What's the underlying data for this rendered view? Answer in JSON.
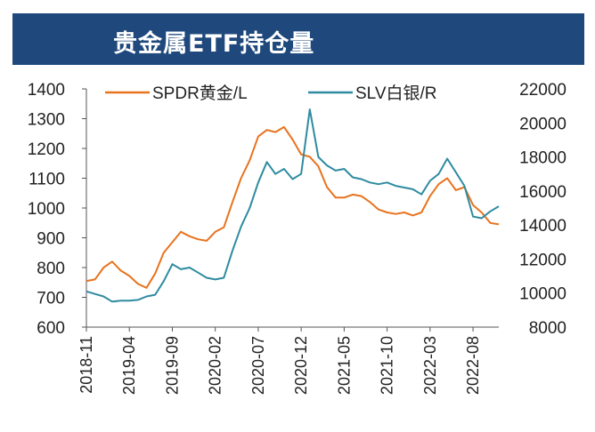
{
  "title": "贵金属ETF持仓量",
  "chart_data": {
    "type": "line",
    "title": "贵金属ETF持仓量",
    "x": [
      "2018-11",
      "2018-12",
      "2019-01",
      "2019-02",
      "2019-03",
      "2019-04",
      "2019-05",
      "2019-06",
      "2019-07",
      "2019-08",
      "2019-09",
      "2019-10",
      "2019-11",
      "2019-12",
      "2020-01",
      "2020-02",
      "2020-03",
      "2020-04",
      "2020-05",
      "2020-06",
      "2020-07",
      "2020-08",
      "2020-09",
      "2020-10",
      "2020-11",
      "2020-12",
      "2021-01",
      "2021-02",
      "2021-03",
      "2021-04",
      "2021-05",
      "2021-06",
      "2021-07",
      "2021-08",
      "2021-09",
      "2021-10",
      "2021-11",
      "2021-12",
      "2022-01",
      "2022-02",
      "2022-03",
      "2022-04",
      "2022-05",
      "2022-06",
      "2022-07",
      "2022-08",
      "2022-09",
      "2022-10",
      "2022-11"
    ],
    "x_tick_labels": [
      "2018-11",
      "2019-04",
      "2019-09",
      "2020-02",
      "2020-07",
      "2020-12",
      "2021-05",
      "2021-10",
      "2022-03",
      "2022-08"
    ],
    "series": [
      {
        "name": "SPDR黄金/L",
        "axis": "left",
        "color": "#e8731e",
        "values": [
          755,
          760,
          800,
          820,
          790,
          772,
          745,
          732,
          780,
          850,
          885,
          920,
          905,
          895,
          890,
          920,
          935,
          1020,
          1100,
          1160,
          1240,
          1262,
          1255,
          1272,
          1230,
          1180,
          1172,
          1140,
          1070,
          1035,
          1035,
          1045,
          1040,
          1020,
          995,
          985,
          980,
          985,
          975,
          985,
          1040,
          1080,
          1100,
          1060,
          1070,
          1010,
          985,
          950,
          945
        ]
      },
      {
        "name": "SLV白银/R",
        "axis": "right",
        "color": "#2e8ba0",
        "values": [
          10100,
          9950,
          9800,
          9500,
          9550,
          9550,
          9600,
          9800,
          9900,
          10700,
          11700,
          11400,
          11500,
          11200,
          10900,
          10800,
          10900,
          12500,
          13900,
          15000,
          16500,
          17700,
          17000,
          17300,
          16700,
          17000,
          20800,
          18000,
          17500,
          17200,
          17300,
          16800,
          16700,
          16500,
          16400,
          16500,
          16300,
          16200,
          16100,
          15800,
          16600,
          17000,
          17900,
          17100,
          16300,
          14500,
          14400,
          14800,
          15100
        ]
      }
    ],
    "y_left": {
      "ylim": [
        600,
        1400
      ],
      "ticks": [
        "1400",
        "1300",
        "1200",
        "1100",
        "1000",
        "900",
        "800",
        "700",
        "600"
      ]
    },
    "y_right": {
      "ylim": [
        8000,
        22000
      ],
      "ticks": [
        "22000",
        "20000",
        "18000",
        "16000",
        "14000",
        "12000",
        "10000",
        "8000"
      ]
    },
    "legend": "top",
    "grid": false
  }
}
